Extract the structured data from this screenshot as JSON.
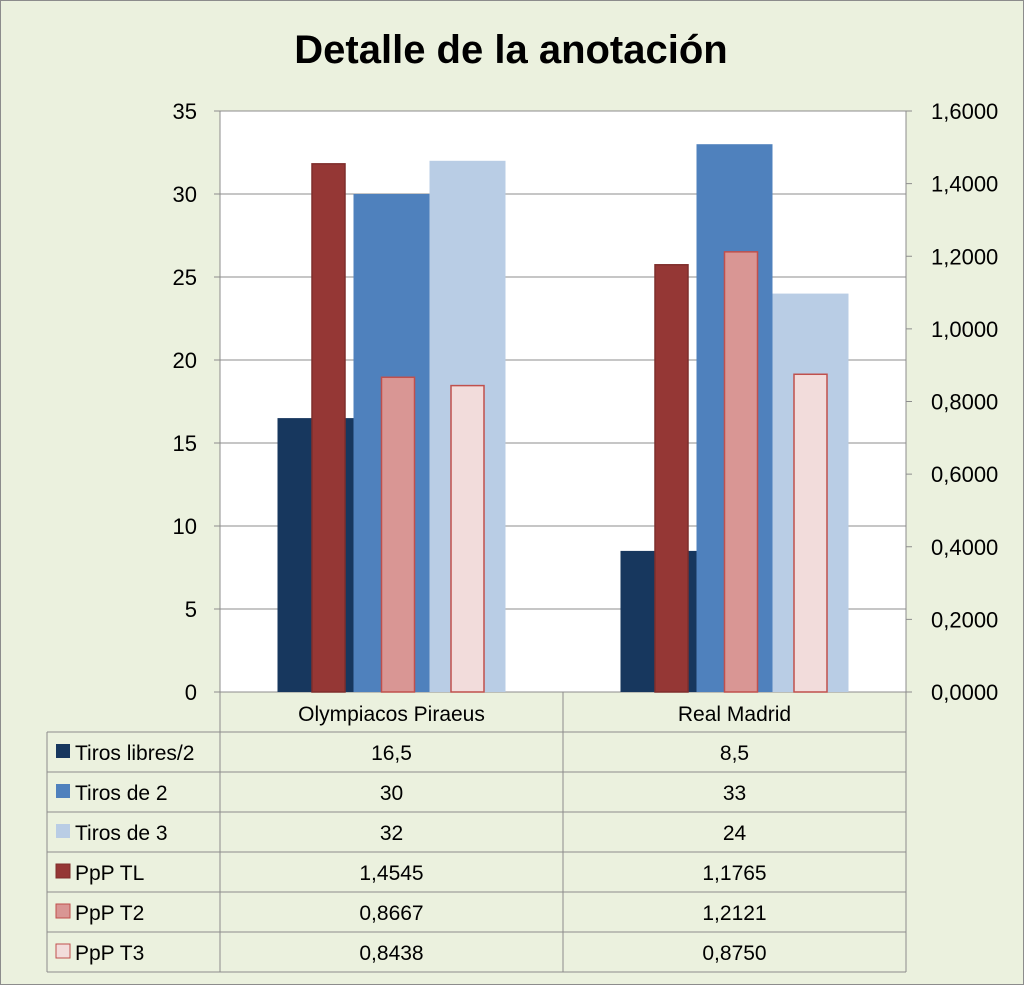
{
  "chart_data": {
    "type": "bar",
    "title": "Detalle de la anotación",
    "categories": [
      "Olympiacos Piraeus",
      "Real Madrid"
    ],
    "y_left": {
      "lim": [
        0,
        35
      ],
      "ticks": [
        0,
        5,
        10,
        15,
        20,
        25,
        30,
        35
      ],
      "tick_labels": [
        "0",
        "5",
        "10",
        "15",
        "20",
        "25",
        "30",
        "35"
      ]
    },
    "y_right": {
      "lim": [
        0,
        1.6
      ],
      "ticks": [
        0,
        0.2,
        0.4,
        0.6,
        0.8,
        1.0,
        1.2,
        1.4,
        1.6
      ],
      "tick_labels": [
        "0,0000",
        "0,2000",
        "0,4000",
        "0,6000",
        "0,8000",
        "1,0000",
        "1,2000",
        "1,4000",
        "1,6000"
      ]
    },
    "grid": true,
    "legend": "data-table",
    "series": [
      {
        "name": "Tiros libres/2",
        "axis": "left",
        "color": "#17375e",
        "border": "#17375e",
        "values": [
          16.5,
          8.5
        ],
        "labels": [
          "16,5",
          "8,5"
        ]
      },
      {
        "name": "Tiros de 2",
        "axis": "left",
        "color": "#4f81bd",
        "border": "#4f81bd",
        "values": [
          30,
          33
        ],
        "labels": [
          "30",
          "33"
        ]
      },
      {
        "name": "Tiros de 3",
        "axis": "left",
        "color": "#b9cde5",
        "border": "#b9cde5",
        "values": [
          32,
          24
        ],
        "labels": [
          "32",
          "24"
        ]
      },
      {
        "name": "PpP TL",
        "axis": "right",
        "color": "#953735",
        "border": "#7f2e2c",
        "values": [
          1.4545,
          1.1765
        ],
        "labels": [
          "1,4545",
          "1,1765"
        ]
      },
      {
        "name": "PpP T2",
        "axis": "right",
        "color": "#d99694",
        "border": "#c0504d",
        "values": [
          0.8667,
          1.2121
        ],
        "labels": [
          "0,8667",
          "1,2121"
        ]
      },
      {
        "name": "PpP T3",
        "axis": "right",
        "color": "#f2dcdb",
        "border": "#c0504d",
        "values": [
          0.8438,
          0.875
        ],
        "labels": [
          "0,8438",
          "0,8750"
        ]
      }
    ]
  }
}
